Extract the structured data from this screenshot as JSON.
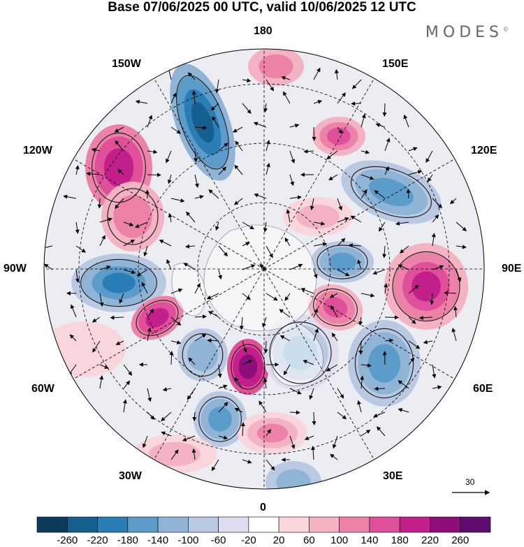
{
  "header": {
    "title": "Base 07/06/2025 00 UTC, valid 10/06/2025 12 UTC",
    "brand": "MODES",
    "brand_mark": "©"
  },
  "map": {
    "projection": "north-polar-stereographic",
    "longitude_labels": {
      "top": "180",
      "top_left": "150W",
      "top_right": "150E",
      "upper_left": "120W",
      "upper_right": "120E",
      "left": "90W",
      "right": "90E",
      "lower_left": "60W",
      "lower_right": "60E",
      "bottom_left": "30W",
      "bottom_right": "30E",
      "bottom": "0"
    },
    "reference_vector": {
      "value": "30"
    }
  },
  "colorbar": {
    "ticks": [
      "-260",
      "-220",
      "-180",
      "-140",
      "-100",
      "-60",
      "-20",
      "20",
      "60",
      "100",
      "140",
      "180",
      "220",
      "260"
    ],
    "colors": [
      "#0c3b5c",
      "#155f8f",
      "#2a7db5",
      "#5b9ccb",
      "#8fb4d6",
      "#bac9e2",
      "#dedeef",
      "#ffffff",
      "#f8d6dc",
      "#f3b3c2",
      "#ec82a8",
      "#e0509a",
      "#c31f8a",
      "#8e0f7c",
      "#5e0c70"
    ]
  }
}
